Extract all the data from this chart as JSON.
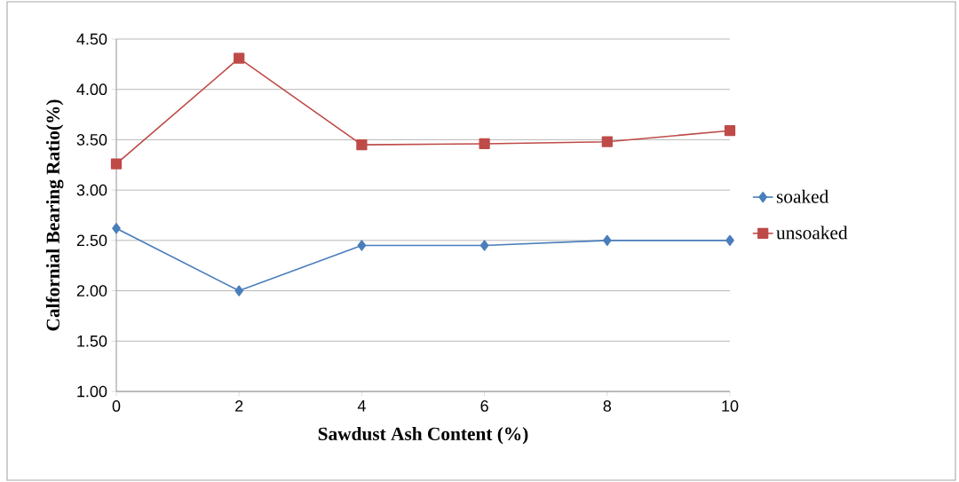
{
  "chart_data": {
    "type": "line",
    "xlabel": "Sawdust Ash Content  (%)",
    "ylabel": "Calfornial  Bearing Ratio(%)",
    "x": [
      0,
      2,
      4,
      6,
      8,
      10
    ],
    "series": [
      {
        "name": "soaked",
        "color": "#4a7ebb",
        "marker": "diamond",
        "values": [
          2.62,
          2.0,
          2.45,
          2.45,
          2.5,
          2.5
        ]
      },
      {
        "name": "unsoaked",
        "color": "#be4b48",
        "marker": "square",
        "values": [
          3.26,
          4.31,
          3.45,
          3.46,
          3.48,
          3.59
        ]
      }
    ],
    "xlim": [
      0,
      10
    ],
    "xticks": [
      0,
      2,
      4,
      6,
      8,
      10
    ],
    "ylim": [
      1,
      4.5
    ],
    "yticks": [
      {
        "value": 1,
        "label": "1.00"
      },
      {
        "value": 1.5,
        "label": "1.50"
      },
      {
        "value": 2,
        "label": "2.00"
      },
      {
        "value": 2.5,
        "label": "2.50"
      },
      {
        "value": 3,
        "label": "3.00"
      },
      {
        "value": 3.5,
        "label": "3.50"
      },
      {
        "value": 4,
        "label": "4.00"
      },
      {
        "value": 4.5,
        "label": "4.50"
      }
    ],
    "grid": "y",
    "legend": "right",
    "line_style": "solid"
  }
}
